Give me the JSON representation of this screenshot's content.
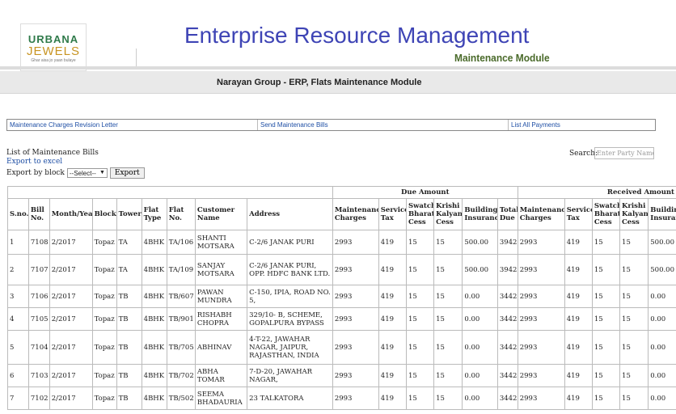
{
  "logo": {
    "line1": "URBANA",
    "line2": "JEWELS",
    "line3": "Ghar aisa jo yaan bulaye"
  },
  "app": {
    "title": "Enterprise Resource Management",
    "subtitle": "Maintenance Module"
  },
  "header": {
    "title": "Narayan Group - ERP, Flats Maintenance Module"
  },
  "nav": {
    "items": [
      "Maintenance Charges Revision Letter",
      "Send Maintenance Bills",
      "List All Payments"
    ]
  },
  "list": {
    "title": "List of Maintenance Bills",
    "export_excel": "Export to excel",
    "export_block_label": "Export by block",
    "block_select": "--Select--",
    "export_button": "Export"
  },
  "search": {
    "label": "Search:",
    "placeholder": "Enter Party Name"
  },
  "table": {
    "group_headers": {
      "due": "Due Amount",
      "received": "Received Amount"
    },
    "columns": [
      "S.no.",
      "Bill No.",
      "Month/Year",
      "Block",
      "Tower",
      "Flat Type",
      "Flat No.",
      "Customer Name",
      "Address",
      "Maintenance Charges",
      "Service Tax",
      "Swatch Bharat Cess",
      "Krishi Kalyan Cess",
      "Building Insurance",
      "Total Due",
      "Maintenance Charges",
      "Service Tax",
      "Swatch Bharat Cess",
      "Krishi Kalyan Cess",
      "Building Insurance"
    ],
    "rows": [
      [
        "1",
        "7108",
        "2/2017",
        "Topaz",
        "TA",
        "4BHK",
        "TA/106",
        "SHANTI MOTSARA",
        "C-2/6 JANAK PURI",
        "2993",
        "419",
        "15",
        "15",
        "500.00",
        "3942",
        "2993",
        "419",
        "15",
        "15",
        "500.00"
      ],
      [
        "2",
        "7107",
        "2/2017",
        "Topaz",
        "TA",
        "4BHK",
        "TA/109",
        "SANJAY MOTSARA",
        "C-2/6 JANAK PURI, OPP. HDFC BANK LTD.",
        "2993",
        "419",
        "15",
        "15",
        "500.00",
        "3942",
        "2993",
        "419",
        "15",
        "15",
        "500.00"
      ],
      [
        "3",
        "7106",
        "2/2017",
        "Topaz",
        "TB",
        "4BHK",
        "TB/607",
        "PAWAN MUNDRA",
        "C-150, IPIA, ROAD NO. 5,",
        "2993",
        "419",
        "15",
        "15",
        "0.00",
        "3442",
        "2993",
        "419",
        "15",
        "15",
        "0.00"
      ],
      [
        "4",
        "7105",
        "2/2017",
        "Topaz",
        "TB",
        "4BHK",
        "TB/901",
        "RISHABH CHOPRA",
        "329/10- B, SCHEME, GOPALPURA BYPASS",
        "2993",
        "419",
        "15",
        "15",
        "0.00",
        "3442",
        "2993",
        "419",
        "15",
        "15",
        "0.00"
      ],
      [
        "5",
        "7104",
        "2/2017",
        "Topaz",
        "TB",
        "4BHK",
        "TB/705",
        "ABHINAV",
        "4-T-22, JAWAHAR NAGAR, JAIPUR, RAJASTHAN, INDIA",
        "2993",
        "419",
        "15",
        "15",
        "0.00",
        "3442",
        "2993",
        "419",
        "15",
        "15",
        "0.00"
      ],
      [
        "6",
        "7103",
        "2/2017",
        "Topaz",
        "TB",
        "4BHK",
        "TB/702",
        "ABHA TOMAR",
        "7-D-20, JAWAHAR NAGAR,",
        "2993",
        "419",
        "15",
        "15",
        "0.00",
        "3442",
        "2993",
        "419",
        "15",
        "15",
        "0.00"
      ],
      [
        "7",
        "7102",
        "2/2017",
        "Topaz",
        "TB",
        "4BHK",
        "TB/502",
        "SEEMA BHADAURIA",
        "23 TALKATORA",
        "2993",
        "419",
        "15",
        "15",
        "0.00",
        "3442",
        "2993",
        "419",
        "15",
        "15",
        "0.00"
      ]
    ]
  }
}
